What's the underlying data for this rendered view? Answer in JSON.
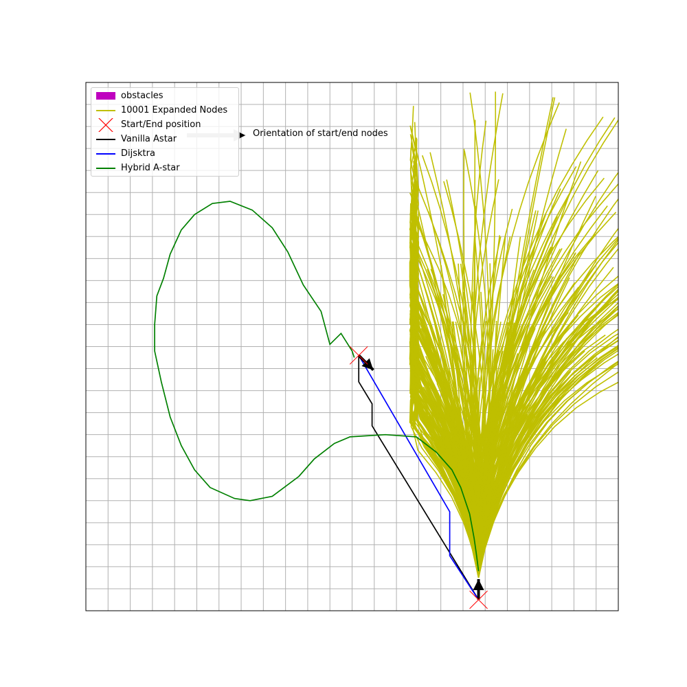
{
  "chart_data": {
    "type": "line",
    "title": "",
    "xlabel": "",
    "ylabel": "",
    "xlim": [
      0,
      24
    ],
    "ylim": [
      0,
      24
    ],
    "grid": true,
    "legend_placement": "top-left",
    "legend": [
      {
        "label": "obstacles",
        "kind": "patch",
        "color": "#bf00bf"
      },
      {
        "label": "10001 Expanded Nodes",
        "kind": "line",
        "color": "#bfbf00"
      },
      {
        "label": "Start/End position",
        "kind": "marker",
        "color": "#ff0000"
      },
      {
        "label": "Vanilla Astar",
        "kind": "line",
        "color": "#000000"
      },
      {
        "label": "Dijsktra",
        "kind": "line",
        "color": "#0000ff"
      },
      {
        "label": "Hybrid A-star",
        "kind": "line",
        "color": "#008000"
      }
    ],
    "annotation": {
      "text": "Orientation of start/end nodes",
      "arrow_color": "#c0c0c0"
    },
    "start": {
      "x": 17.7,
      "y": 0.5,
      "heading_deg": 90
    },
    "goal": {
      "x": 12.3,
      "y": 11.6,
      "heading_deg": -45
    },
    "series": [
      {
        "name": "Vanilla Astar",
        "color": "#000000",
        "x": [
          17.7,
          12.9,
          12.9,
          12.3,
          12.3
        ],
        "y": [
          0.5,
          8.4,
          9.4,
          10.4,
          11.6
        ]
      },
      {
        "name": "Dijsktra",
        "color": "#0000ff",
        "x": [
          17.7,
          16.4,
          16.4,
          12.3
        ],
        "y": [
          0.5,
          2.5,
          4.5,
          11.6
        ]
      },
      {
        "name": "Hybrid A-star",
        "color": "#008000",
        "x": [
          17.7,
          17.6,
          17.5,
          17.3,
          16.9,
          16.5,
          15.8,
          14.9,
          13.5,
          11.9,
          11.2,
          10.3,
          9.6,
          8.4,
          7.4,
          6.7,
          5.6,
          4.9,
          4.3,
          3.8,
          3.4,
          3.1,
          3.1,
          3.2,
          3.5,
          3.8,
          4.3,
          4.9,
          5.7,
          6.5,
          7.5,
          8.4,
          9.1,
          9.8,
          10.6,
          11.0,
          11.5,
          12.0,
          12.1
        ],
        "y": [
          1.8,
          2.6,
          3.3,
          4.4,
          5.6,
          6.4,
          7.2,
          7.9,
          8.0,
          7.9,
          7.6,
          6.9,
          6.1,
          5.2,
          5.0,
          5.1,
          5.6,
          6.4,
          7.5,
          8.8,
          10.4,
          11.8,
          13.0,
          14.3,
          15.1,
          16.2,
          17.3,
          18.0,
          18.5,
          18.6,
          18.2,
          17.4,
          16.3,
          14.8,
          13.6,
          12.1,
          12.6,
          11.8,
          11.5
        ]
      }
    ],
    "expanded_nodes": {
      "name": "10001 Expanded Nodes",
      "color": "#bfbf00",
      "root": [
        17.7,
        1.5
      ],
      "count": 10001
    }
  }
}
